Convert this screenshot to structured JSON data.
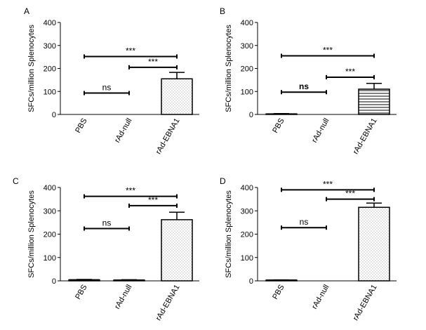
{
  "figure": {
    "background": "#ffffff",
    "bar_stroke": "#000000",
    "dot_color": "#777777"
  },
  "chart_data": [
    {
      "panel": "A",
      "type": "bar",
      "categories": [
        "PBS",
        "rAd-null",
        "rAd-EBNA1"
      ],
      "values": [
        0,
        0,
        155
      ],
      "errors": [
        0,
        0,
        28
      ],
      "pattern": "dots",
      "ylabel": "SFCs/million Splenocytes",
      "ylim": [
        0,
        400
      ],
      "yticks": [
        "0",
        "100",
        "200",
        "300",
        "400"
      ],
      "comparisons": [
        {
          "from": 0,
          "to": 1,
          "label": "ns",
          "level": 93,
          "bold": false
        },
        {
          "from": 1,
          "to": 2,
          "label": "***",
          "level": 205,
          "bold": false
        },
        {
          "from": 0,
          "to": 2,
          "label": "***",
          "level": 252,
          "bold": false
        }
      ]
    },
    {
      "panel": "B",
      "type": "bar",
      "categories": [
        "PBS",
        "rAd-null",
        "rAd-EBNA1"
      ],
      "values": [
        2,
        0,
        110
      ],
      "errors": [
        2,
        0,
        25
      ],
      "pattern": "hlines",
      "ylabel": "SFCs/million Splenocytes",
      "ylim": [
        0,
        400
      ],
      "yticks": [
        "0",
        "100",
        "200",
        "300",
        "400"
      ],
      "comparisons": [
        {
          "from": 0,
          "to": 1,
          "label": "ns",
          "level": 97,
          "bold": true
        },
        {
          "from": 1,
          "to": 2,
          "label": "***",
          "level": 162,
          "bold": false
        },
        {
          "from": 0,
          "to": 2,
          "label": "***",
          "level": 255,
          "bold": false
        }
      ]
    },
    {
      "panel": "C",
      "type": "bar",
      "categories": [
        "PBS",
        "rAd-null",
        "rAd-EBNA1"
      ],
      "values": [
        4,
        3,
        262
      ],
      "errors": [
        2,
        2,
        32
      ],
      "pattern": "dots",
      "ylabel": "SFCs/million Splenocytes",
      "ylim": [
        0,
        400
      ],
      "yticks": [
        "0",
        "100",
        "200",
        "300",
        "400"
      ],
      "comparisons": [
        {
          "from": 0,
          "to": 1,
          "label": "ns",
          "level": 224,
          "bold": false
        },
        {
          "from": 1,
          "to": 2,
          "label": "***",
          "level": 322,
          "bold": false
        },
        {
          "from": 0,
          "to": 2,
          "label": "***",
          "level": 362,
          "bold": false
        }
      ]
    },
    {
      "panel": "D",
      "type": "bar",
      "categories": [
        "PBS",
        "rAd-null",
        "rAd-EBNA1"
      ],
      "values": [
        3,
        0,
        315
      ],
      "errors": [
        1,
        0,
        18
      ],
      "pattern": "dots",
      "ylabel": "SFCs/million Splenocytes",
      "ylim": [
        0,
        400
      ],
      "yticks": [
        "0",
        "100",
        "200",
        "300",
        "400"
      ],
      "comparisons": [
        {
          "from": 0,
          "to": 1,
          "label": "ns",
          "level": 228,
          "bold": false
        },
        {
          "from": 1,
          "to": 2,
          "label": "***",
          "level": 350,
          "bold": false
        },
        {
          "from": 0,
          "to": 2,
          "label": "***",
          "level": 390,
          "bold": false
        }
      ]
    }
  ]
}
